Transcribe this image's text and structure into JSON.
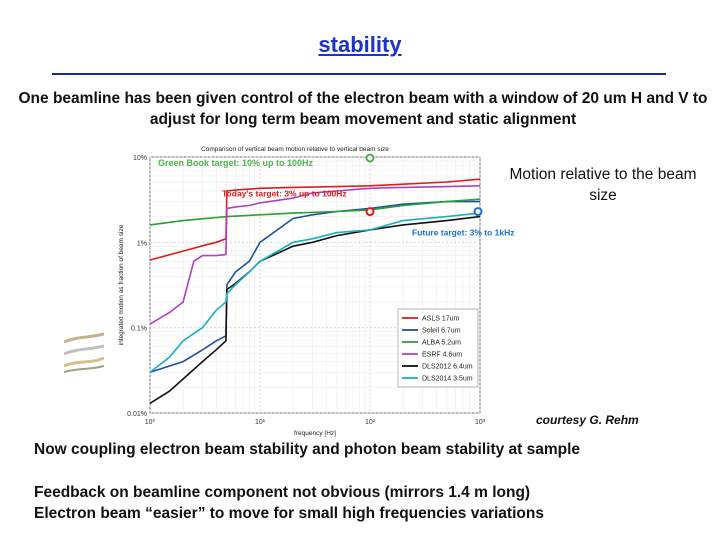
{
  "slide": {
    "title": "stability",
    "intro": "One beamline has been given control of the electron beam with a window of 20 um H and V to adjust for long term beam movement and static alignment",
    "side_note": "Motion relative to the beam size",
    "credit": "courtesy G. Rehm",
    "line1": "Now coupling electron beam stability and photon beam stability at sample",
    "line2": "Feedback on beamline component not obvious (mirrors 1.4 m long)",
    "line3": "Electron beam “easier” to move for small high frequencies variations"
  },
  "chart_data": {
    "type": "line",
    "title": "Comparison of vertical beam motion relative to vertical beam size",
    "xlabel": "frequency [Hz]",
    "ylabel": "integrated motion as fraction of beam size",
    "xscale": "log",
    "yscale": "log",
    "xlim": [
      1,
      1000
    ],
    "ylim": [
      0.0001,
      0.1
    ],
    "x_ticks": [
      "10⁰",
      "10¹",
      "10²",
      "10³"
    ],
    "y_ticks": [
      "10%",
      "1%",
      "0.1%",
      "0.01%"
    ],
    "y_tick_values": [
      0.1,
      0.01,
      0.001,
      0.0001
    ],
    "legend_position": "bottom-right",
    "annotations": [
      {
        "text": "Green Book target: 10% up to 100Hz",
        "color": "#4db34d",
        "x": 100,
        "y": 0.1
      },
      {
        "text": "Today's target: 3% up to 100Hz",
        "color": "#e01b1b",
        "x": 100,
        "y": 0.03
      },
      {
        "text": "Future target: 3% to 1kHz",
        "color": "#1a6fd1",
        "x": 1000,
        "y": 0.03
      }
    ],
    "series": [
      {
        "name": "ASLS 17um",
        "color": "#e31a1c",
        "x": [
          1,
          2,
          3,
          4,
          4.9,
          5,
          6,
          8,
          10,
          20,
          50,
          100,
          200,
          500,
          1000
        ],
        "y": [
          0.0062,
          0.0079,
          0.0091,
          0.01,
          0.011,
          0.04,
          0.041,
          0.042,
          0.043,
          0.044,
          0.045,
          0.046,
          0.048,
          0.051,
          0.055
        ]
      },
      {
        "name": "Soleil 6.7um",
        "color": "#1f4fa8",
        "x": [
          1,
          2,
          3,
          4,
          4.9,
          5,
          6,
          8,
          10,
          20,
          30,
          50,
          100,
          200,
          500,
          1000
        ],
        "y": [
          0.0003,
          0.0004,
          0.00055,
          0.0007,
          0.0008,
          0.0032,
          0.0045,
          0.006,
          0.01,
          0.019,
          0.021,
          0.023,
          0.025,
          0.028,
          0.03,
          0.03
        ]
      },
      {
        "name": "ALBA 5.2um",
        "color": "#2ca02c",
        "x": [
          1,
          2,
          5,
          10,
          20,
          50,
          100,
          200,
          500,
          1000
        ],
        "y": [
          0.016,
          0.018,
          0.02,
          0.021,
          0.022,
          0.023,
          0.024,
          0.027,
          0.03,
          0.032
        ]
      },
      {
        "name": "ESRF 4.6um",
        "color": "#b040c0",
        "x": [
          1,
          1.5,
          2,
          2.5,
          3,
          4,
          4.9,
          5,
          6,
          8,
          10,
          20,
          30,
          50,
          80,
          100,
          200,
          500,
          1000
        ],
        "y": [
          0.0011,
          0.0015,
          0.002,
          0.006,
          0.007,
          0.007,
          0.0072,
          0.025,
          0.026,
          0.027,
          0.029,
          0.033,
          0.038,
          0.04,
          0.042,
          0.043,
          0.044,
          0.045,
          0.046
        ]
      },
      {
        "name": "DLS2012 6.4um",
        "color": "#111111",
        "x": [
          1,
          1.5,
          2,
          3,
          4,
          4.9,
          5,
          6,
          8,
          10,
          20,
          30,
          50,
          100,
          200,
          500,
          1000
        ],
        "y": [
          0.00013,
          0.00018,
          0.00025,
          0.0004,
          0.00055,
          0.0007,
          0.0028,
          0.0033,
          0.0045,
          0.006,
          0.009,
          0.01,
          0.012,
          0.014,
          0.016,
          0.018,
          0.02
        ]
      },
      {
        "name": "DLS2014 3.5um",
        "color": "#17b0c0",
        "x": [
          1,
          1.5,
          2,
          3,
          4,
          4.9,
          5,
          6,
          8,
          10,
          20,
          30,
          50,
          100,
          200,
          500,
          1000
        ],
        "y": [
          0.0003,
          0.00045,
          0.0007,
          0.001,
          0.0016,
          0.002,
          0.0025,
          0.0032,
          0.0045,
          0.006,
          0.01,
          0.011,
          0.013,
          0.014,
          0.018,
          0.02,
          0.022
        ]
      }
    ]
  }
}
